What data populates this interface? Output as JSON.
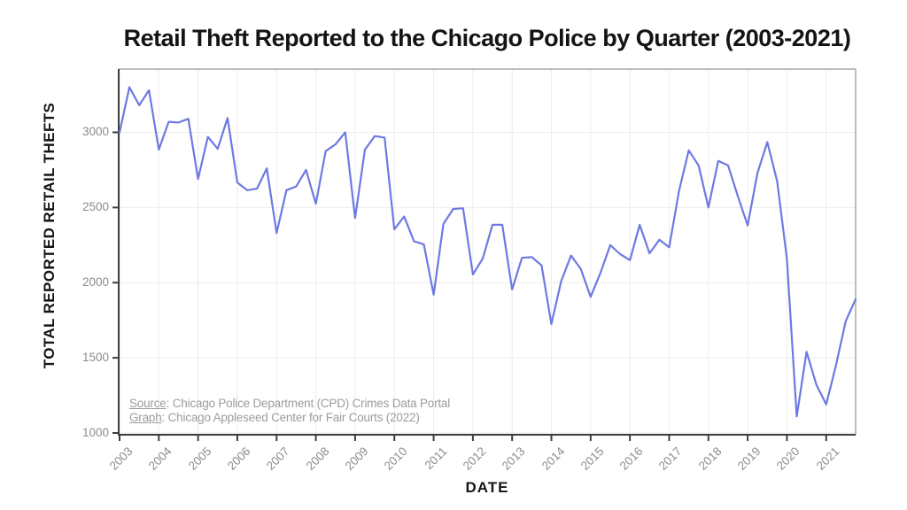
{
  "chart_data": {
    "type": "line",
    "title": "Retail Theft Reported to the Chicago Police by Quarter (2003-2021)",
    "xlabel": "DATE",
    "ylabel": "TOTAL REPORTED RETAIL THEFTS",
    "grid": true,
    "legend": "none",
    "line_color": "#6e79e2",
    "xlim": [
      2003,
      2021.75
    ],
    "ylim": [
      988,
      3421
    ],
    "x_tick_labels": [
      "2003",
      "2004",
      "2005",
      "2006",
      "2007",
      "2008",
      "2009",
      "2010",
      "2011",
      "2012",
      "2013",
      "2014",
      "2015",
      "2016",
      "2017",
      "2018",
      "2019",
      "2020",
      "2021"
    ],
    "y_ticks": [
      1000,
      1500,
      2000,
      2500,
      3000
    ],
    "series": [
      {
        "name": "Total reported retail thefts per quarter",
        "start_year": 2003,
        "points_per_year": 4,
        "values": [
          3000,
          3300,
          3180,
          3280,
          2885,
          3070,
          3065,
          3090,
          2690,
          2970,
          2890,
          3095,
          2665,
          2615,
          2625,
          2760,
          2330,
          2615,
          2640,
          2750,
          2525,
          2875,
          2920,
          3000,
          2430,
          2885,
          2975,
          2965,
          2355,
          2440,
          2275,
          2255,
          1920,
          2390,
          2490,
          2495,
          2055,
          2160,
          2385,
          2385,
          1955,
          2165,
          2170,
          2115,
          1725,
          2010,
          2180,
          2090,
          1905,
          2065,
          2250,
          2190,
          2150,
          2385,
          2195,
          2285,
          2235,
          2610,
          2880,
          2780,
          2500,
          2810,
          2780,
          2575,
          2380,
          2730,
          2935,
          2675,
          2160,
          1110,
          1540,
          1320,
          1190,
          1450,
          1745,
          1890
        ]
      }
    ],
    "annotations": {
      "source_label": "Source",
      "source_text": ": Chicago Police Department (CPD) Crimes Data Portal",
      "graph_label": "Graph",
      "graph_text": ": Chicago Appleseed Center for Fair Courts (2022)"
    },
    "colors": {
      "axis_line": "#3d3d3d",
      "panel_border": "#a8a8a8",
      "gridline": "#ececec",
      "tick_label": "#8c8c8c",
      "note_text": "#9c9c9c"
    }
  }
}
